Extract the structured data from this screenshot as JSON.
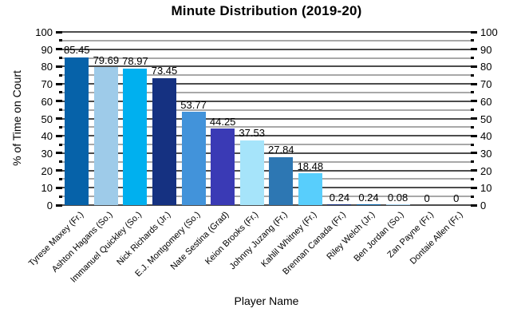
{
  "chart_data": {
    "type": "bar",
    "title": "Minute Distribution (2019-20)",
    "xlabel": "Player Name",
    "ylabel": "% of Time on Court",
    "ylim": [
      0,
      100
    ],
    "yticks": [
      0,
      10,
      20,
      30,
      40,
      50,
      60,
      70,
      80,
      90,
      100
    ],
    "ytick_major_step": 10,
    "ytick_minor_step": 5,
    "grid": "horizontal; dark major line every 10, light minor line every 5",
    "legend": "none",
    "dual_y_axis": true,
    "categories": [
      "Tyrese Maxey (Fr.)",
      "Ashton Hagans (So.)",
      "Immanuel Quickley (So.)",
      "Nick Richards (Jr.)",
      "E.J. Montgomery (So.)",
      "Nate Sestina (Grad)",
      "Keion Brooks (Fr.)",
      "Johnny Juzang (Fr.)",
      "Kahlil Whitney (Fr.)",
      "Brennan Canada (Fr.)",
      "Riley Welch (Jr.)",
      "Ben Jordan (So.)",
      "Zan Payne (Fr.)",
      "Dontaie Allen (Fr.)"
    ],
    "values": [
      85.45,
      79.69,
      78.97,
      73.45,
      53.77,
      44.25,
      37.53,
      27.84,
      18.48,
      0.24,
      0.24,
      0.08,
      0,
      0
    ],
    "value_labels": [
      "85.45",
      "79.69",
      "78.97",
      "73.45",
      "53.77",
      "44.25",
      "37.53",
      "27.84",
      "18.48",
      "0.24",
      "0.24",
      "0.08",
      "0",
      "0"
    ],
    "bar_colors": [
      "#0662a9",
      "#9ecbe9",
      "#00b0ef",
      "#153181",
      "#4293da",
      "#3a3ab5",
      "#a6e4fa",
      "#2d77b3",
      "#58cefc",
      "#153181",
      "#0662a9",
      "#9ecbe9",
      null,
      null
    ],
    "colors": {
      "grid_major": "#4d4d4d",
      "grid_minor": "#a8a8a8",
      "tick": "#000000",
      "text": "#000000",
      "background": "#ffffff"
    }
  }
}
